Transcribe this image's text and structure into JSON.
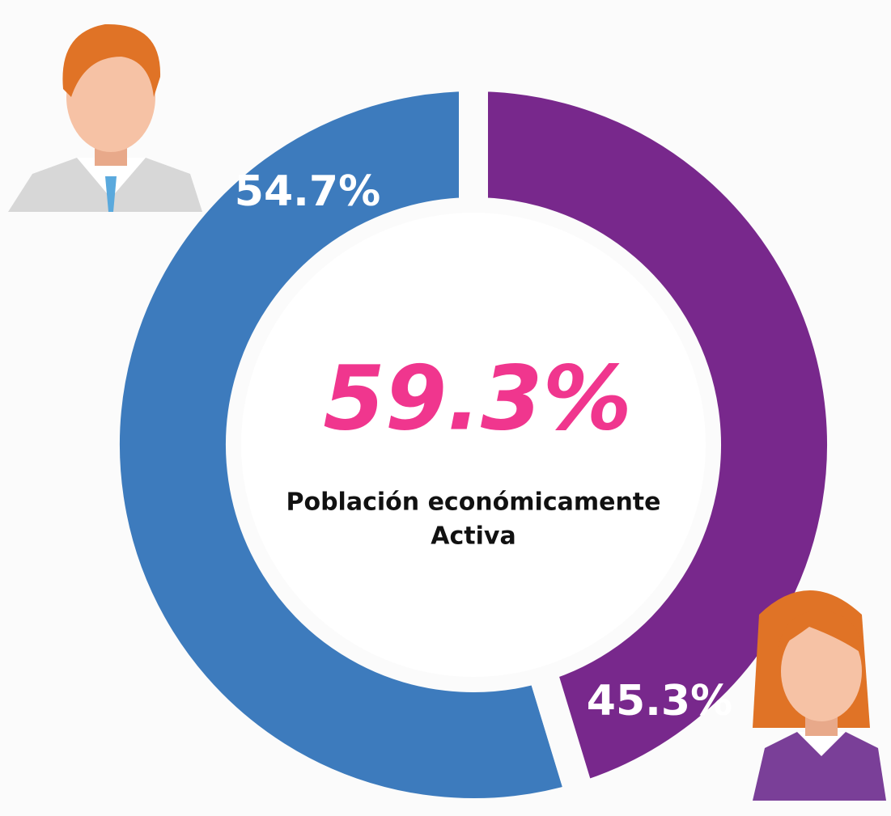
{
  "chart_data": {
    "type": "pie",
    "donut": true,
    "values": [
      54.7,
      45.3
    ],
    "value_labels": [
      "54.7%",
      "45.3%"
    ],
    "colors": [
      "#3d7bbd",
      "#78288c"
    ],
    "center_label": "59.3%",
    "center_text": [
      "Población económicamente",
      "Activa"
    ]
  }
}
